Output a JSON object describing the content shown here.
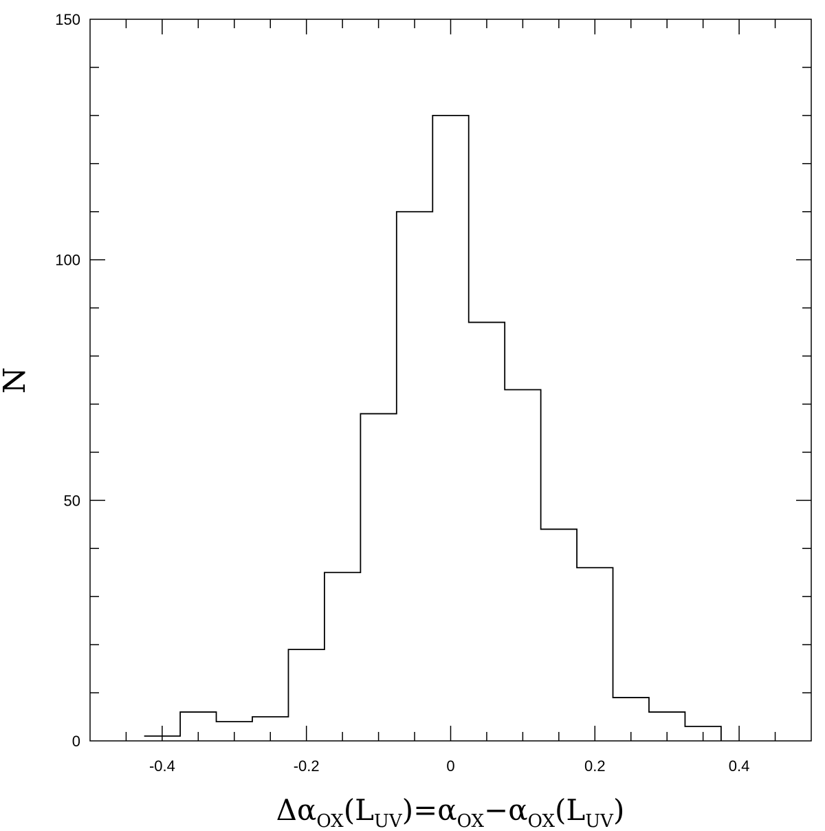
{
  "chart_data": {
    "type": "bar",
    "style": "step-histogram",
    "xlabel": {
      "prefix": "Δα",
      "sub1": "OX",
      "open1": "(L",
      "sub2": "UV",
      "close1": ")",
      "equals": "=",
      "alpha2": "α",
      "sub3": "OX",
      "minus": "−",
      "alpha3": "α",
      "sub4": "OX",
      "open2": "(L",
      "sub5": "UV",
      "close2": ")"
    },
    "ylabel": "N",
    "xlim": [
      -0.5,
      0.5
    ],
    "ylim": [
      0,
      150
    ],
    "x_major_ticks": [
      -0.4,
      -0.2,
      0,
      0.2,
      0.4
    ],
    "x_tick_labels": [
      "-0.4",
      "-0.2",
      "0",
      "0.2",
      "0.4"
    ],
    "x_minor_step": 0.05,
    "y_major_ticks": [
      0,
      50,
      100,
      150
    ],
    "y_tick_labels": [
      "0",
      "50",
      "100",
      "150"
    ],
    "y_minor_step": 10,
    "bin_edges": [
      -0.425,
      -0.375,
      -0.325,
      -0.275,
      -0.225,
      -0.175,
      -0.125,
      -0.075,
      -0.025,
      0.025,
      0.075,
      0.125,
      0.175,
      0.225,
      0.275,
      0.325,
      0.375
    ],
    "counts": [
      1,
      6,
      4,
      5,
      19,
      35,
      68,
      110,
      130,
      87,
      73,
      44,
      36,
      9,
      6,
      3
    ],
    "grid": false,
    "line_color": "#000000"
  }
}
